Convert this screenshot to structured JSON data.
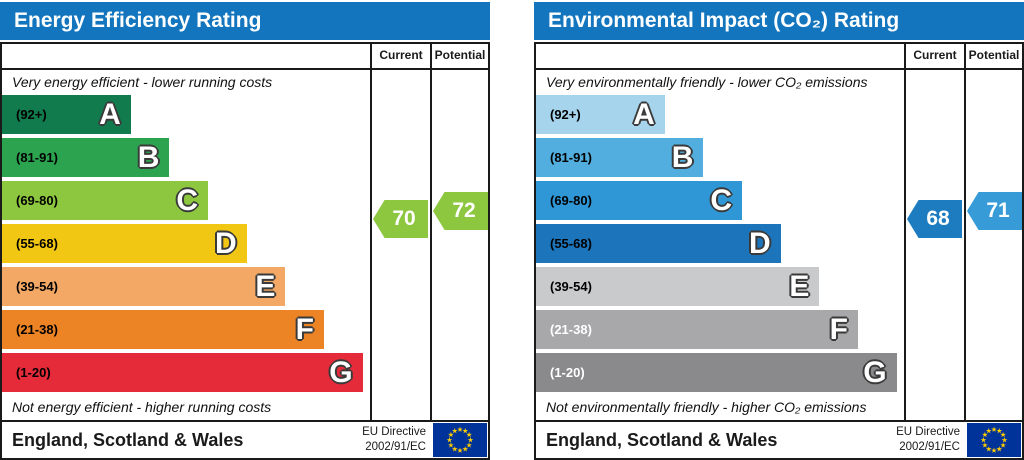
{
  "page": {
    "background": "#ffffff",
    "header_blue": "#1375bd"
  },
  "chart_data": [
    {
      "type": "bar",
      "title": "Energy Efficiency Rating",
      "categories": [
        "A (92+)",
        "B (81-91)",
        "C (69-80)",
        "D (55-68)",
        "E (39-54)",
        "F (21-38)",
        "G (1-20)"
      ],
      "series": [
        {
          "name": "Current",
          "values": [
            70
          ],
          "band": "C",
          "color": "#8dc63f"
        },
        {
          "name": "Potential",
          "values": [
            72
          ],
          "band": "C",
          "color": "#8dc63f"
        }
      ],
      "value_range": [
        1,
        100
      ],
      "top_label": "Very energy efficient - lower running costs",
      "bottom_label": "Not energy efficient - higher running costs",
      "region": "England, Scotland & Wales",
      "directive": "EU Directive 2002/91/EC"
    },
    {
      "type": "bar",
      "title": "Environmental Impact (CO₂) Rating",
      "categories": [
        "A (92+)",
        "B (81-91)",
        "C (69-80)",
        "D (55-68)",
        "E (39-54)",
        "F (21-38)",
        "G (1-20)"
      ],
      "series": [
        {
          "name": "Current",
          "values": [
            68
          ],
          "band": "D",
          "color": "#1d7cc0"
        },
        {
          "name": "Potential",
          "values": [
            71
          ],
          "band": "C",
          "color": "#379bd8"
        }
      ],
      "value_range": [
        1,
        100
      ],
      "top_label": "Very environmentally friendly - lower CO₂ emissions",
      "bottom_label": "Not environmentally friendly - higher CO₂ emissions",
      "region": "England, Scotland & Wales",
      "directive": "EU Directive 2002/91/EC"
    }
  ],
  "left_chart": {
    "title": "Energy Efficiency Rating",
    "header_color": "#1375bd",
    "columns": {
      "current": "Current",
      "potential": "Potential"
    },
    "top_caption": "Very energy efficient - lower running costs",
    "bottom_caption": "Not energy efficient - higher running costs",
    "bands": [
      {
        "letter": "A",
        "range": "(92+)",
        "color": "#117b4d",
        "range_color": "#000000",
        "width_pct": 35
      },
      {
        "letter": "B",
        "range": "(81-91)",
        "color": "#2ca34f",
        "range_color": "#000000",
        "width_pct": 45.5
      },
      {
        "letter": "C",
        "range": "(69-80)",
        "color": "#8dc63f",
        "range_color": "#000000",
        "width_pct": 56
      },
      {
        "letter": "D",
        "range": "(55-68)",
        "color": "#f2c713",
        "range_color": "#000000",
        "width_pct": 66.5
      },
      {
        "letter": "E",
        "range": "(39-54)",
        "color": "#f4a866",
        "range_color": "#000000",
        "width_pct": 77
      },
      {
        "letter": "F",
        "range": "(21-38)",
        "color": "#ec8426",
        "range_color": "#000000",
        "width_pct": 87.5
      },
      {
        "letter": "G",
        "range": "(1-20)",
        "color": "#e52a39",
        "range_color": "#000000",
        "width_pct": 98
      }
    ],
    "current": {
      "value": "70",
      "color": "#8dc63f"
    },
    "potential": {
      "value": "72",
      "color": "#8dc63f"
    },
    "footer": {
      "region": "England, Scotland & Wales",
      "directive_line1": "EU Directive",
      "directive_line2": "2002/91/EC"
    },
    "eu_flag": {
      "icon": "eu-flag-icon",
      "background": "#003399",
      "star_color": "#ffcc00"
    }
  },
  "right_chart": {
    "title": "Environmental Impact (CO₂) Rating",
    "header_color": "#1375bd",
    "columns": {
      "current": "Current",
      "potential": "Potential"
    },
    "top_caption": "Very environmentally friendly - lower CO₂ emissions",
    "bottom_caption": "Not environmentally friendly - higher CO₂ emissions",
    "bands": [
      {
        "letter": "A",
        "range": "(92+)",
        "color": "#a6d4ec",
        "range_color": "#000000",
        "width_pct": 35
      },
      {
        "letter": "B",
        "range": "(81-91)",
        "color": "#52aede",
        "range_color": "#000000",
        "width_pct": 45.5
      },
      {
        "letter": "C",
        "range": "(69-80)",
        "color": "#2f97d5",
        "range_color": "#000000",
        "width_pct": 56
      },
      {
        "letter": "D",
        "range": "(55-68)",
        "color": "#1c75bb",
        "range_color": "#000000",
        "width_pct": 66.5
      },
      {
        "letter": "E",
        "range": "(39-54)",
        "color": "#c9cacc",
        "range_color": "#000000",
        "width_pct": 77
      },
      {
        "letter": "F",
        "range": "(21-38)",
        "color": "#a8a8aa",
        "range_color": "#ffffff",
        "width_pct": 87.5
      },
      {
        "letter": "G",
        "range": "(1-20)",
        "color": "#8a8a8c",
        "range_color": "#ffffff",
        "width_pct": 98
      }
    ],
    "current": {
      "value": "68",
      "color": "#1d7cc0"
    },
    "potential": {
      "value": "71",
      "color": "#379bd8"
    },
    "footer": {
      "region": "England, Scotland & Wales",
      "directive_line1": "EU Directive",
      "directive_line2": "2002/91/EC"
    },
    "eu_flag": {
      "icon": "eu-flag-icon",
      "background": "#003399",
      "star_color": "#ffcc00"
    }
  }
}
